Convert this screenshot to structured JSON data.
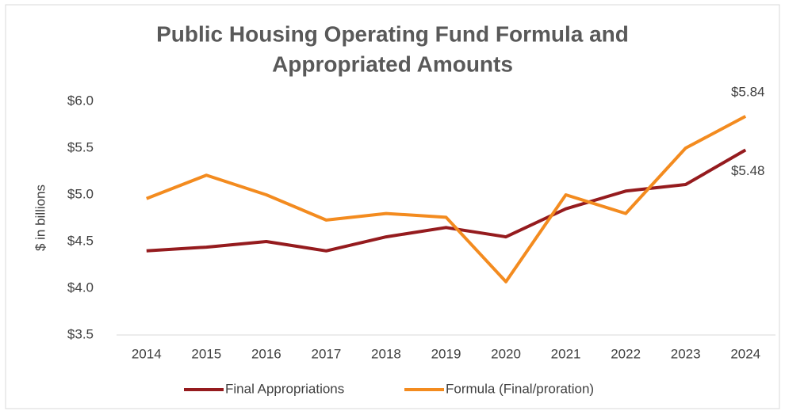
{
  "chart_data": {
    "type": "line",
    "title": [
      "Public Housing Operating Fund Formula and",
      "Appropriated Amounts"
    ],
    "y_label": "$ in billions",
    "categories": [
      "2014",
      "2015",
      "2016",
      "2017",
      "2018",
      "2019",
      "2020",
      "2021",
      "2022",
      "2023",
      "2024"
    ],
    "series": [
      {
        "name": "Final Appropriations",
        "color": "#951b1e",
        "values": [
          4.4,
          4.44,
          4.5,
          4.4,
          4.55,
          4.65,
          4.55,
          4.85,
          5.04,
          5.11,
          5.48
        ],
        "value_labels": [
          null,
          null,
          null,
          null,
          null,
          null,
          null,
          null,
          null,
          null,
          "$5.48"
        ]
      },
      {
        "name": "Formula (Final/proration)",
        "color": "#f38b1f",
        "values": [
          4.96,
          5.21,
          5.0,
          4.73,
          4.8,
          4.76,
          4.07,
          5.0,
          4.8,
          5.5,
          5.84
        ],
        "value_labels": [
          null,
          null,
          null,
          null,
          null,
          null,
          null,
          null,
          null,
          null,
          "$5.84"
        ]
      }
    ],
    "ylim": [
      3.5,
      6.0
    ],
    "yticks": [
      {
        "value": 3.5,
        "label": "$3.5"
      },
      {
        "value": 4.0,
        "label": "$4.0"
      },
      {
        "value": 4.5,
        "label": "$4.5"
      },
      {
        "value": 5.0,
        "label": "$5.0"
      },
      {
        "value": 5.5,
        "label": "$5.5"
      },
      {
        "value": 6.0,
        "label": "$6.0"
      }
    ],
    "grid": false,
    "legend": "bottom"
  }
}
